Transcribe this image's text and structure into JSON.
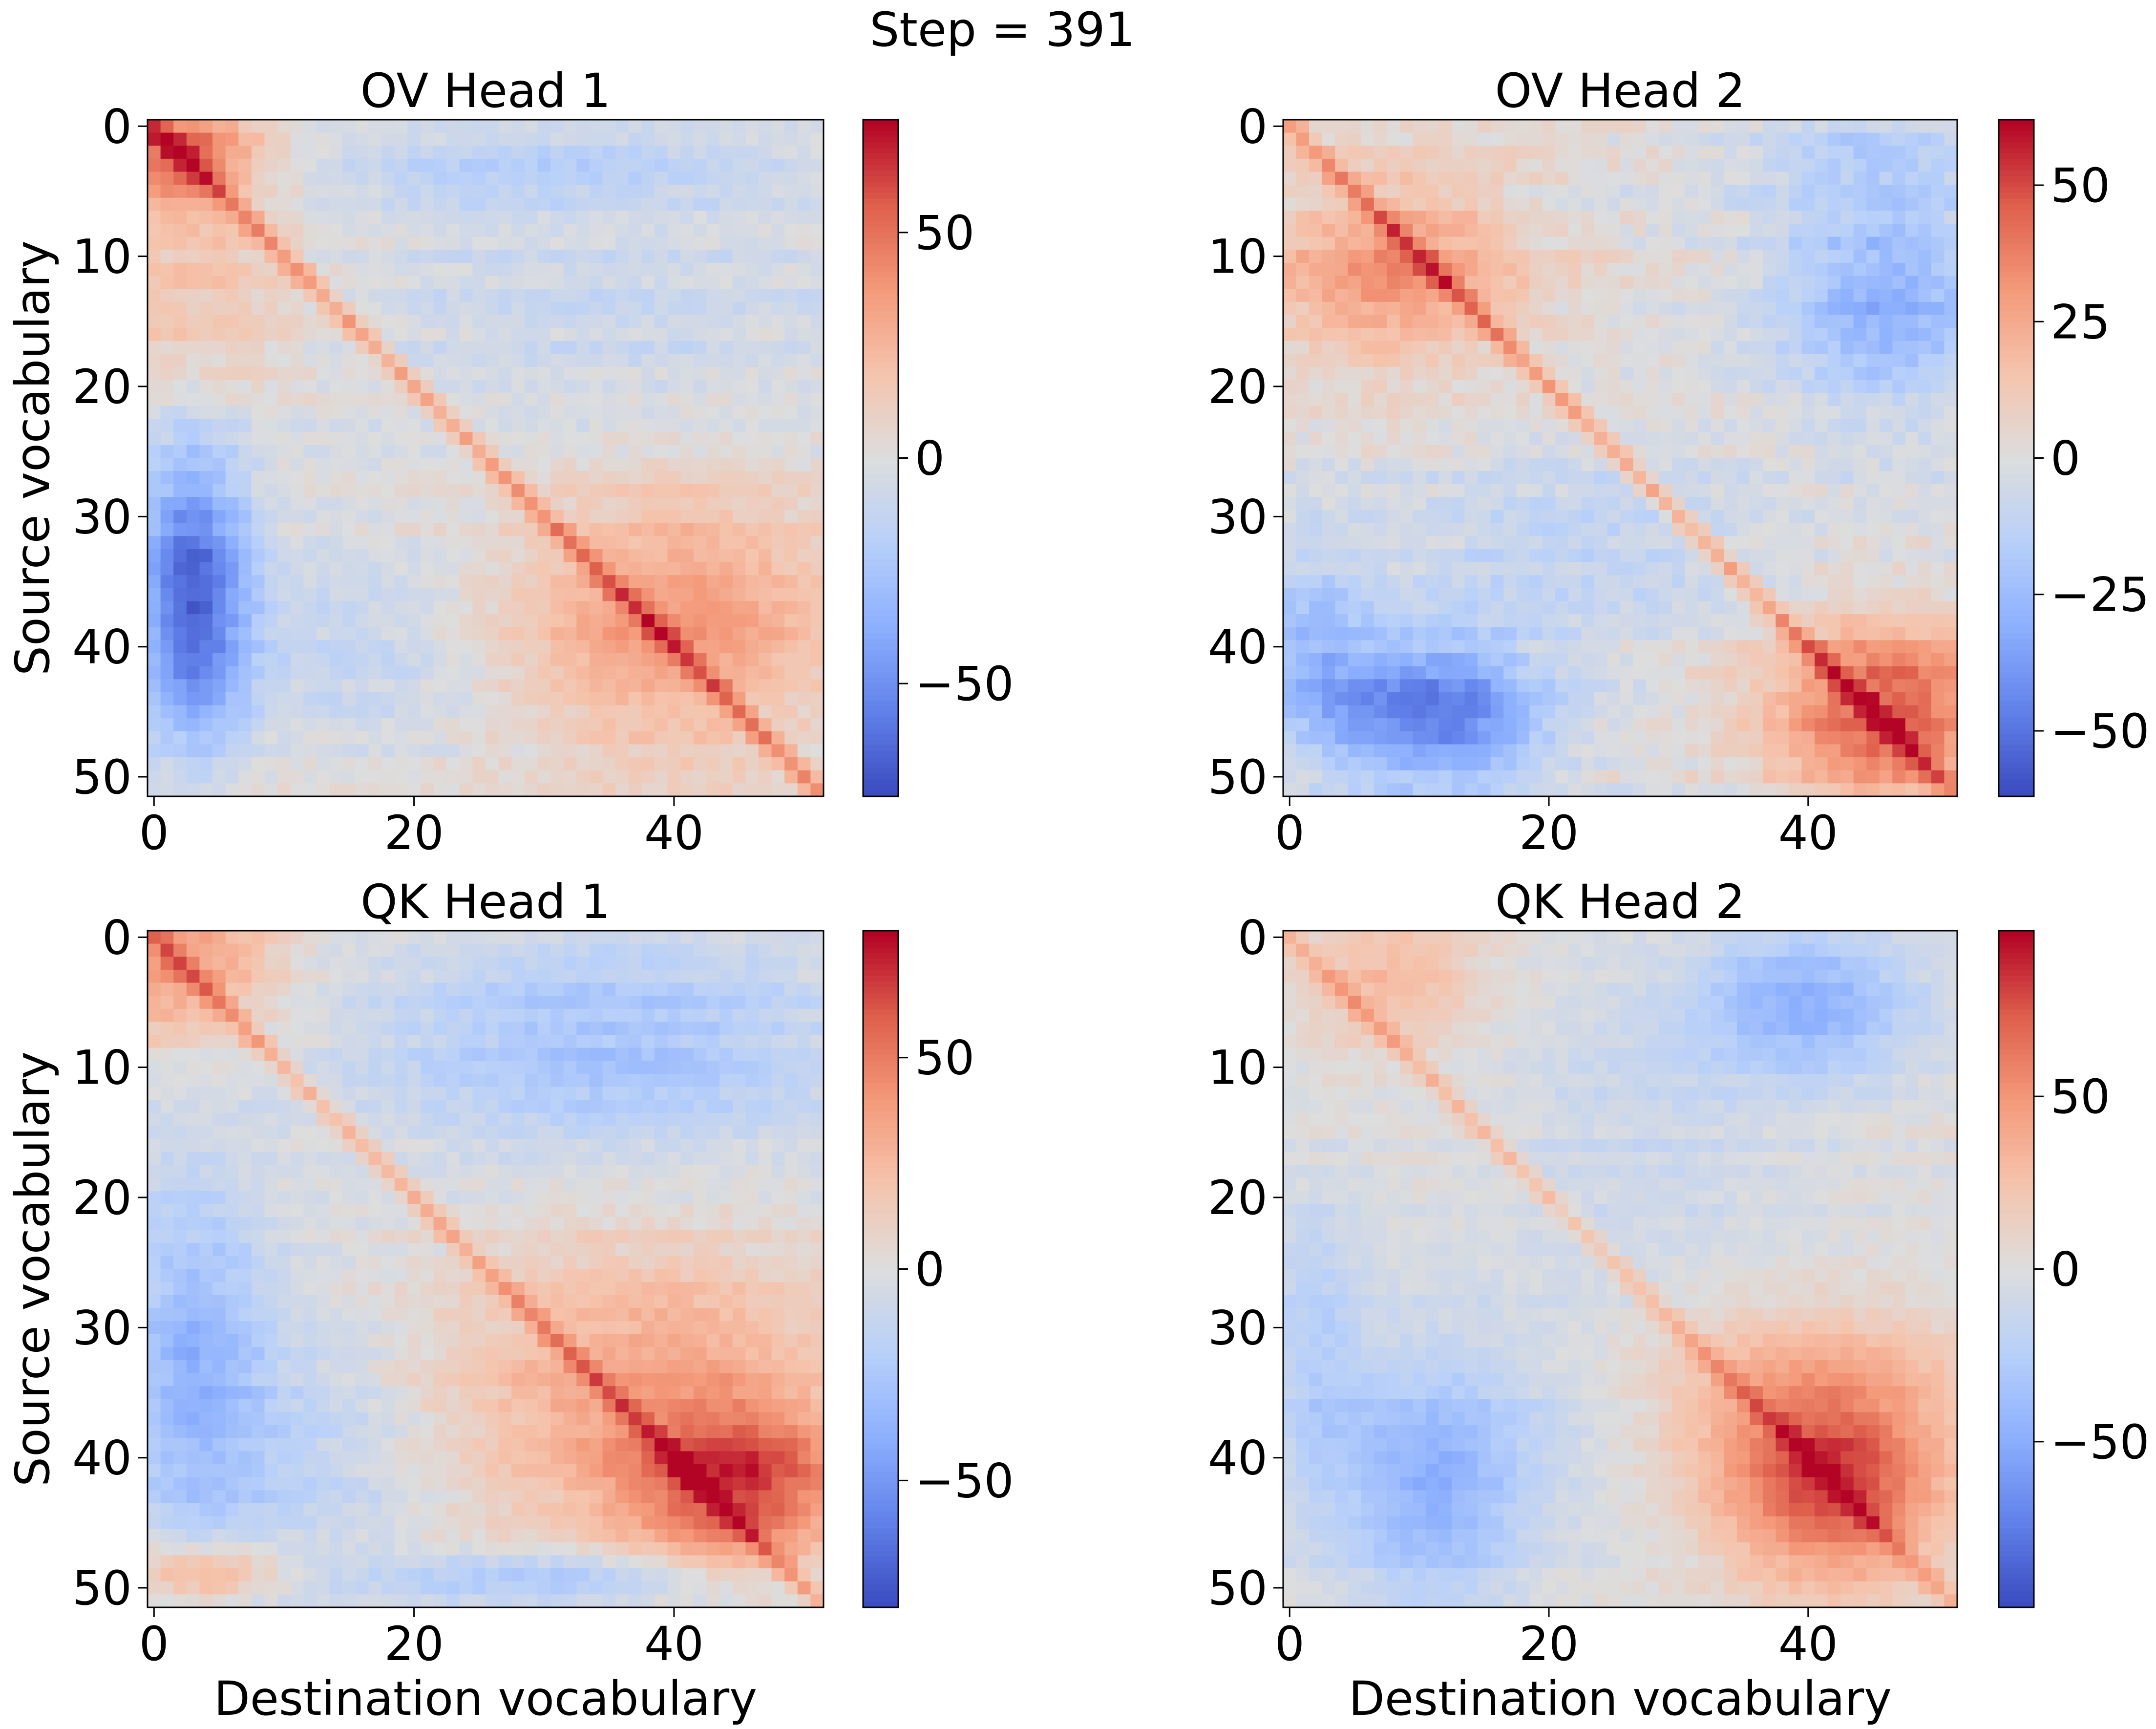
{
  "suptitle": "Step = 391",
  "chart_data": [
    {
      "type": "heatmap",
      "title": "OV Head 1",
      "xlabel": "",
      "ylabel": "Source vocabulary",
      "x_ticks": [
        "0",
        "20",
        "40"
      ],
      "y_ticks": [
        "0",
        "10",
        "20",
        "30",
        "40",
        "50"
      ],
      "colorbar_ticks": [
        {
          "value": -50,
          "label": "−50"
        },
        {
          "value": 0,
          "label": "0"
        },
        {
          "value": 50,
          "label": "50"
        }
      ],
      "vmin": -75,
      "vmax": 75,
      "n_rows": 52,
      "n_cols": 52,
      "features": [
        {
          "x": 2,
          "y": 2,
          "sx": 4,
          "sy": 3,
          "a": 55
        },
        {
          "x": 40,
          "y": 38,
          "sx": 9,
          "sy": 7,
          "a": 38
        },
        {
          "x": 3,
          "y": 36,
          "sx": 3,
          "sy": 8,
          "a": -65
        },
        {
          "x": 30,
          "y": 3,
          "sx": 14,
          "sy": 2,
          "a": -20
        },
        {
          "x": 35,
          "y": 14,
          "sx": 15,
          "sy": 6,
          "a": -10
        },
        {
          "x": 15,
          "y": 40,
          "sx": 8,
          "sy": 5,
          "a": -12
        },
        {
          "x": 3,
          "y": 13,
          "sx": 6,
          "sy": 6,
          "a": 18
        }
      ],
      "diag": 35,
      "colormap": "coolwarm"
    },
    {
      "type": "heatmap",
      "title": "OV Head 2",
      "xlabel": "",
      "ylabel": "",
      "x_ticks": [
        "0",
        "20",
        "40"
      ],
      "y_ticks": [
        "0",
        "10",
        "20",
        "30",
        "40",
        "50"
      ],
      "colorbar_ticks": [
        {
          "value": -50,
          "label": "−50"
        },
        {
          "value": -25,
          "label": "−25"
        },
        {
          "value": 0,
          "label": "0"
        },
        {
          "value": 25,
          "label": "25"
        },
        {
          "value": 50,
          "label": "50"
        }
      ],
      "vmin": -62,
      "vmax": 62,
      "n_rows": 52,
      "n_cols": 52,
      "features": [
        {
          "x": 8,
          "y": 11,
          "sx": 7,
          "sy": 5,
          "a": 32
        },
        {
          "x": 46,
          "y": 45,
          "sx": 6,
          "sy": 5,
          "a": 48
        },
        {
          "x": 11,
          "y": 45,
          "sx": 6,
          "sy": 4,
          "a": -50
        },
        {
          "x": 46,
          "y": 13,
          "sx": 6,
          "sy": 6,
          "a": -30
        },
        {
          "x": 2,
          "y": 40,
          "sx": 3,
          "sy": 5,
          "a": -22
        },
        {
          "x": 22,
          "y": 32,
          "sx": 9,
          "sy": 5,
          "a": -10
        },
        {
          "x": 44,
          "y": 2,
          "sx": 7,
          "sy": 2,
          "a": -15
        }
      ],
      "diag": 28,
      "colormap": "coolwarm"
    },
    {
      "type": "heatmap",
      "title": "QK Head 1",
      "xlabel": "Destination vocabulary",
      "ylabel": "Source vocabulary",
      "x_ticks": [
        "0",
        "20",
        "40"
      ],
      "y_ticks": [
        "0",
        "10",
        "20",
        "30",
        "40",
        "50"
      ],
      "colorbar_ticks": [
        {
          "value": -50,
          "label": "−50"
        },
        {
          "value": 0,
          "label": "0"
        },
        {
          "value": 50,
          "label": "50"
        }
      ],
      "vmin": -80,
      "vmax": 80,
      "n_rows": 52,
      "n_cols": 52,
      "features": [
        {
          "x": 2,
          "y": 2,
          "sx": 5,
          "sy": 4,
          "a": 40
        },
        {
          "x": 45,
          "y": 42,
          "sx": 6,
          "sy": 4,
          "a": 55
        },
        {
          "x": 38,
          "y": 35,
          "sx": 11,
          "sy": 8,
          "a": 35
        },
        {
          "x": 35,
          "y": 8,
          "sx": 13,
          "sy": 6,
          "a": -28
        },
        {
          "x": 3,
          "y": 33,
          "sx": 4,
          "sy": 10,
          "a": -35
        },
        {
          "x": 30,
          "y": 49,
          "sx": 10,
          "sy": 1.5,
          "a": -30
        },
        {
          "x": 4,
          "y": 49,
          "sx": 4,
          "sy": 1.5,
          "a": 35
        },
        {
          "x": 12,
          "y": 40,
          "sx": 6,
          "sy": 7,
          "a": -15
        }
      ],
      "diag": 30,
      "colormap": "coolwarm"
    },
    {
      "type": "heatmap",
      "title": "QK Head 2",
      "xlabel": "Destination vocabulary",
      "ylabel": "",
      "x_ticks": [
        "0",
        "20",
        "40"
      ],
      "y_ticks": [
        "0",
        "10",
        "20",
        "30",
        "40",
        "50"
      ],
      "colorbar_ticks": [
        {
          "value": -50,
          "label": "−50"
        },
        {
          "value": 0,
          "label": "0"
        },
        {
          "value": 50,
          "label": "50"
        }
      ],
      "vmin": -98,
      "vmax": 98,
      "n_rows": 52,
      "n_cols": 52,
      "features": [
        {
          "x": 42,
          "y": 43,
          "sx": 6,
          "sy": 5,
          "a": 70
        },
        {
          "x": 40,
          "y": 36,
          "sx": 8,
          "sy": 5,
          "a": 40
        },
        {
          "x": 40,
          "y": 5,
          "sx": 6,
          "sy": 4,
          "a": -45
        },
        {
          "x": 11,
          "y": 42,
          "sx": 5,
          "sy": 7,
          "a": -45
        },
        {
          "x": 2,
          "y": 32,
          "sx": 3,
          "sy": 8,
          "a": -25
        },
        {
          "x": 8,
          "y": 3,
          "sx": 5,
          "sy": 4,
          "a": 30
        },
        {
          "x": 28,
          "y": 15,
          "sx": 8,
          "sy": 8,
          "a": -12
        },
        {
          "x": 20,
          "y": 36,
          "sx": 6,
          "sy": 6,
          "a": -8
        }
      ],
      "diag": 30,
      "colormap": "coolwarm"
    }
  ]
}
